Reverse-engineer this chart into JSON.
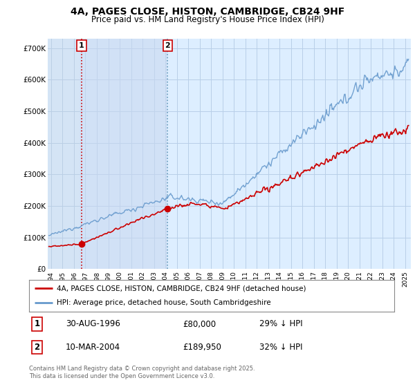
{
  "title": "4A, PAGES CLOSE, HISTON, CAMBRIDGE, CB24 9HF",
  "subtitle": "Price paid vs. HM Land Registry's House Price Index (HPI)",
  "plot_bg_color": "#ddeeff",
  "grid_color": "#b8cfe8",
  "ylabel_values": [
    "£0",
    "£100K",
    "£200K",
    "£300K",
    "£400K",
    "£500K",
    "£600K",
    "£700K"
  ],
  "ytick_values": [
    0,
    100000,
    200000,
    300000,
    400000,
    500000,
    600000,
    700000
  ],
  "ylim": [
    0,
    730000
  ],
  "xlim_start": 1993.7,
  "xlim_end": 2025.5,
  "purchase1_year": 1996.67,
  "purchase1_price": 80000,
  "purchase2_year": 2004.19,
  "purchase2_price": 189950,
  "purchase1_date": "30-AUG-1996",
  "purchase1_amount": "£80,000",
  "purchase1_hpi": "29% ↓ HPI",
  "purchase2_date": "10-MAR-2004",
  "purchase2_amount": "£189,950",
  "purchase2_hpi": "32% ↓ HPI",
  "legend_line1": "4A, PAGES CLOSE, HISTON, CAMBRIDGE, CB24 9HF (detached house)",
  "legend_line2": "HPI: Average price, detached house, South Cambridgeshire",
  "footer": "Contains HM Land Registry data © Crown copyright and database right 2025.\nThis data is licensed under the Open Government Licence v3.0.",
  "red_line_color": "#cc0000",
  "blue_line_color": "#6699cc",
  "hatch_end_year": 1996.5,
  "blue_shade_end_year": 2004.19
}
